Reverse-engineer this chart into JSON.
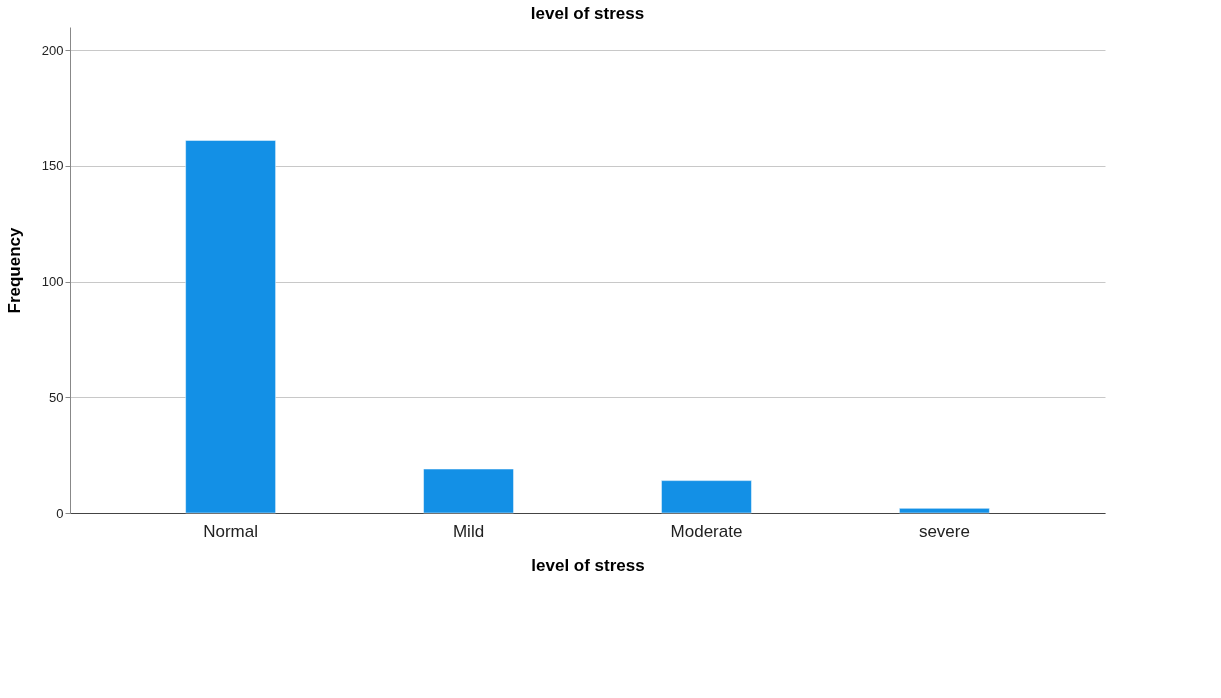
{
  "chart_data": {
    "type": "bar",
    "title": "level of stress",
    "xlabel": "level of stress",
    "ylabel": "Frequency",
    "categories": [
      "Normal",
      "Mild",
      "Moderate",
      "severe"
    ],
    "values": [
      161,
      19,
      14,
      2
    ],
    "color": "#1390e6",
    "ylim": [
      0,
      210
    ],
    "yticks": [
      0,
      50,
      100,
      150,
      200
    ],
    "grid": "y"
  }
}
